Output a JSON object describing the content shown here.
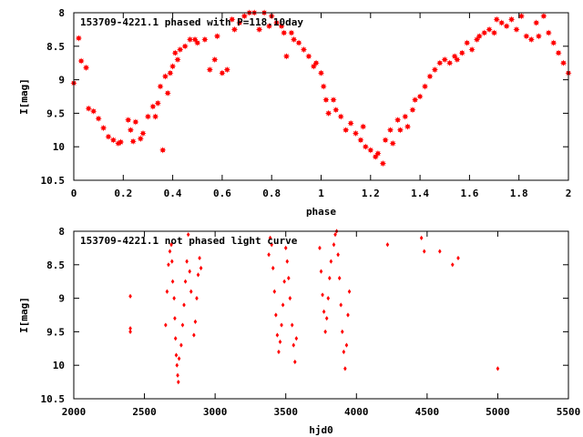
{
  "chart_data": [
    {
      "type": "scatter",
      "title": "153709-4221.1 phased with P=118.10day",
      "xlabel": "phase",
      "ylabel": "I[mag]",
      "xlim": [
        0,
        2
      ],
      "ylim": [
        10.5,
        8
      ],
      "y_inverted": true,
      "xticks": [
        "0",
        "0.2",
        "0.4",
        "0.6",
        "0.8",
        "1",
        "1.2",
        "1.4",
        "1.6",
        "1.8",
        "2"
      ],
      "yticks": [
        "8",
        "8.5",
        "9",
        "9.5",
        "10",
        "10.5"
      ],
      "grid": false,
      "marker": "filled-star",
      "color": "#ff0000",
      "series": [
        {
          "points": [
            [
              0.0,
              9.05
            ],
            [
              0.02,
              8.38
            ],
            [
              0.03,
              8.72
            ],
            [
              0.05,
              8.82
            ],
            [
              0.06,
              9.43
            ],
            [
              0.08,
              9.47
            ],
            [
              0.1,
              9.58
            ],
            [
              0.12,
              9.72
            ],
            [
              0.14,
              9.85
            ],
            [
              0.16,
              9.9
            ],
            [
              0.18,
              9.95
            ],
            [
              0.19,
              9.93
            ],
            [
              0.22,
              9.6
            ],
            [
              0.23,
              9.75
            ],
            [
              0.24,
              9.92
            ],
            [
              0.25,
              9.63
            ],
            [
              0.27,
              9.88
            ],
            [
              0.28,
              9.8
            ],
            [
              0.3,
              9.55
            ],
            [
              0.32,
              9.4
            ],
            [
              0.33,
              9.55
            ],
            [
              0.34,
              9.35
            ],
            [
              0.35,
              9.1
            ],
            [
              0.36,
              10.05
            ],
            [
              0.37,
              8.95
            ],
            [
              0.38,
              9.2
            ],
            [
              0.39,
              8.9
            ],
            [
              0.4,
              8.8
            ],
            [
              0.41,
              8.6
            ],
            [
              0.42,
              8.7
            ],
            [
              0.43,
              8.55
            ],
            [
              0.45,
              8.5
            ],
            [
              0.47,
              8.4
            ],
            [
              0.49,
              8.4
            ],
            [
              0.5,
              8.45
            ],
            [
              0.53,
              8.4
            ],
            [
              0.55,
              8.85
            ],
            [
              0.57,
              8.7
            ],
            [
              0.58,
              8.35
            ],
            [
              0.6,
              8.9
            ],
            [
              0.62,
              8.85
            ],
            [
              0.64,
              8.1
            ],
            [
              0.65,
              8.25
            ],
            [
              0.67,
              8.15
            ],
            [
              0.69,
              8.05
            ],
            [
              0.71,
              8.0
            ],
            [
              0.73,
              8.0
            ],
            [
              0.75,
              8.25
            ],
            [
              0.77,
              8.0
            ],
            [
              0.79,
              8.2
            ],
            [
              0.8,
              8.05
            ],
            [
              0.82,
              8.15
            ],
            [
              0.84,
              8.2
            ],
            [
              0.85,
              8.3
            ],
            [
              0.86,
              8.65
            ],
            [
              0.88,
              8.3
            ],
            [
              0.89,
              8.4
            ],
            [
              0.91,
              8.45
            ],
            [
              0.93,
              8.55
            ],
            [
              0.95,
              8.65
            ],
            [
              0.97,
              8.8
            ],
            [
              0.98,
              8.75
            ],
            [
              1.0,
              8.9
            ],
            [
              1.01,
              9.1
            ],
            [
              1.02,
              9.3
            ],
            [
              1.03,
              9.5
            ],
            [
              1.05,
              9.3
            ],
            [
              1.06,
              9.45
            ],
            [
              1.08,
              9.55
            ],
            [
              1.1,
              9.75
            ],
            [
              1.12,
              9.65
            ],
            [
              1.14,
              9.8
            ],
            [
              1.16,
              9.9
            ],
            [
              1.17,
              9.7
            ],
            [
              1.18,
              10.0
            ],
            [
              1.2,
              10.05
            ],
            [
              1.22,
              10.15
            ],
            [
              1.23,
              10.1
            ],
            [
              1.25,
              10.25
            ],
            [
              1.26,
              9.9
            ],
            [
              1.28,
              9.75
            ],
            [
              1.29,
              9.95
            ],
            [
              1.31,
              9.6
            ],
            [
              1.32,
              9.75
            ],
            [
              1.34,
              9.55
            ],
            [
              1.35,
              9.7
            ],
            [
              1.37,
              9.45
            ],
            [
              1.38,
              9.3
            ],
            [
              1.4,
              9.25
            ],
            [
              1.42,
              9.1
            ],
            [
              1.44,
              8.95
            ],
            [
              1.46,
              8.85
            ],
            [
              1.48,
              8.75
            ],
            [
              1.5,
              8.7
            ],
            [
              1.52,
              8.75
            ],
            [
              1.54,
              8.65
            ],
            [
              1.55,
              8.7
            ],
            [
              1.57,
              8.6
            ],
            [
              1.59,
              8.45
            ],
            [
              1.61,
              8.55
            ],
            [
              1.63,
              8.4
            ],
            [
              1.64,
              8.35
            ],
            [
              1.66,
              8.3
            ],
            [
              1.68,
              8.25
            ],
            [
              1.7,
              8.3
            ],
            [
              1.71,
              8.1
            ],
            [
              1.73,
              8.15
            ],
            [
              1.75,
              8.2
            ],
            [
              1.77,
              8.1
            ],
            [
              1.79,
              8.25
            ],
            [
              1.81,
              8.05
            ],
            [
              1.83,
              8.35
            ],
            [
              1.85,
              8.4
            ],
            [
              1.87,
              8.15
            ],
            [
              1.88,
              8.35
            ],
            [
              1.9,
              8.05
            ],
            [
              1.92,
              8.3
            ],
            [
              1.94,
              8.45
            ],
            [
              1.96,
              8.6
            ],
            [
              1.98,
              8.75
            ],
            [
              2.0,
              8.9
            ]
          ]
        }
      ]
    },
    {
      "type": "scatter",
      "title": "153709-4221.1 not phased light curve",
      "xlabel": "hjd0",
      "ylabel": "I[mag]",
      "xlim": [
        2000,
        5500
      ],
      "ylim": [
        10.5,
        8
      ],
      "y_inverted": true,
      "xticks": [
        "2000",
        "2500",
        "3000",
        "3500",
        "4000",
        "4500",
        "5000",
        "5500"
      ],
      "yticks": [
        "8",
        "8.5",
        "9",
        "9.5",
        "10",
        "10.5"
      ],
      "grid": false,
      "marker": "small-diamond",
      "color": "#ff0000",
      "series": [
        {
          "points": [
            [
              2400,
              8.97
            ],
            [
              2400,
              9.45
            ],
            [
              2400,
              9.5
            ],
            [
              2650,
              9.4
            ],
            [
              2660,
              8.9
            ],
            [
              2670,
              8.5
            ],
            [
              2680,
              8.3
            ],
            [
              2690,
              8.2
            ],
            [
              2695,
              8.45
            ],
            [
              2700,
              8.75
            ],
            [
              2710,
              9.0
            ],
            [
              2715,
              9.3
            ],
            [
              2720,
              9.6
            ],
            [
              2725,
              9.85
            ],
            [
              2730,
              10.0
            ],
            [
              2735,
              10.15
            ],
            [
              2740,
              10.25
            ],
            [
              2745,
              9.9
            ],
            [
              2760,
              9.7
            ],
            [
              2770,
              9.4
            ],
            [
              2780,
              9.1
            ],
            [
              2790,
              8.75
            ],
            [
              2800,
              8.45
            ],
            [
              2810,
              8.05
            ],
            [
              2820,
              8.6
            ],
            [
              2830,
              8.9
            ],
            [
              2850,
              9.55
            ],
            [
              2860,
              9.35
            ],
            [
              2870,
              9.0
            ],
            [
              2880,
              8.65
            ],
            [
              2890,
              8.4
            ],
            [
              2900,
              8.55
            ],
            [
              3380,
              8.35
            ],
            [
              3390,
              8.1
            ],
            [
              3400,
              8.2
            ],
            [
              3410,
              8.55
            ],
            [
              3420,
              8.9
            ],
            [
              3430,
              9.25
            ],
            [
              3440,
              9.55
            ],
            [
              3450,
              9.8
            ],
            [
              3460,
              9.65
            ],
            [
              3470,
              9.4
            ],
            [
              3480,
              9.1
            ],
            [
              3490,
              8.75
            ],
            [
              3500,
              8.25
            ],
            [
              3510,
              8.45
            ],
            [
              3520,
              8.7
            ],
            [
              3530,
              9.0
            ],
            [
              3545,
              9.4
            ],
            [
              3555,
              9.7
            ],
            [
              3565,
              9.95
            ],
            [
              3575,
              9.6
            ],
            [
              3740,
              8.25
            ],
            [
              3750,
              8.6
            ],
            [
              3760,
              8.95
            ],
            [
              3770,
              9.2
            ],
            [
              3780,
              9.5
            ],
            [
              3790,
              9.3
            ],
            [
              3800,
              9.0
            ],
            [
              3810,
              8.7
            ],
            [
              3820,
              8.45
            ],
            [
              3840,
              8.2
            ],
            [
              3850,
              8.05
            ],
            [
              3860,
              8.0
            ],
            [
              3870,
              8.35
            ],
            [
              3880,
              8.7
            ],
            [
              3890,
              9.1
            ],
            [
              3900,
              9.5
            ],
            [
              3910,
              9.8
            ],
            [
              3920,
              10.05
            ],
            [
              3930,
              9.7
            ],
            [
              3940,
              9.25
            ],
            [
              3950,
              8.9
            ],
            [
              4220,
              8.2
            ],
            [
              4460,
              8.1
            ],
            [
              4480,
              8.3
            ],
            [
              4590,
              8.3
            ],
            [
              4680,
              8.5
            ],
            [
              4720,
              8.4
            ],
            [
              5000,
              10.05
            ]
          ]
        }
      ]
    }
  ]
}
